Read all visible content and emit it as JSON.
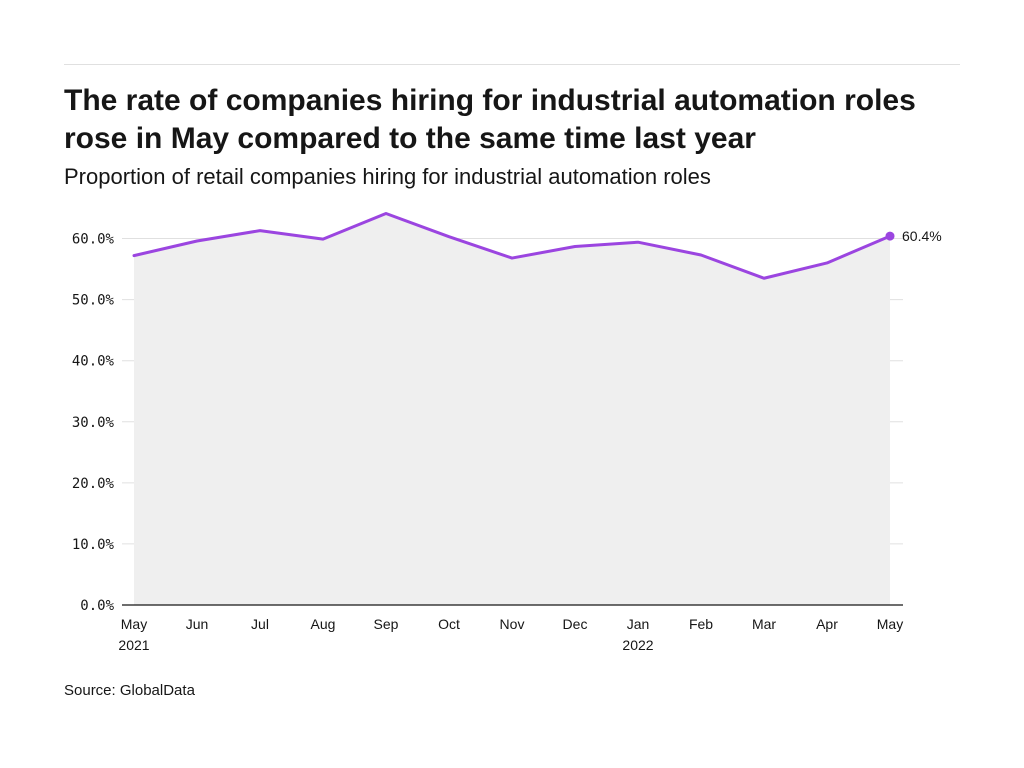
{
  "header": {
    "title": "The rate of companies hiring for industrial automation roles rose in May compared to the same time last year",
    "subtitle": "Proportion of retail companies hiring for industrial automation roles"
  },
  "footer": {
    "source": "Source: GlobalData"
  },
  "colors": {
    "line": "#9b45e0",
    "area": "#efefef",
    "grid": "#e0e0e0",
    "axis": "#161616"
  },
  "chart_data": {
    "type": "area",
    "title": "The rate of companies hiring for industrial automation roles rose in May compared to the same time last year",
    "subtitle": "Proportion of retail companies hiring for industrial automation roles",
    "x": [
      "2021-05",
      "2021-06",
      "2021-07",
      "2021-08",
      "2021-09",
      "2021-10",
      "2021-11",
      "2021-12",
      "2022-01",
      "2022-02",
      "2022-03",
      "2022-04",
      "2022-05"
    ],
    "x_tick_labels": [
      "May",
      "Jun",
      "Jul",
      "Aug",
      "Sep",
      "Oct",
      "Nov",
      "Dec",
      "Jan",
      "Feb",
      "Mar",
      "Apr",
      "May"
    ],
    "x_year_labels": [
      "2021",
      "",
      "",
      "",
      "",
      "",
      "",
      "",
      "2022",
      "",
      "",
      "",
      ""
    ],
    "series": [
      {
        "values": [
          57.2,
          59.6,
          61.3,
          59.9,
          64.1,
          60.3,
          56.8,
          58.7,
          59.4,
          57.3,
          53.5,
          56.0,
          60.4
        ]
      }
    ],
    "y_tick_labels": [
      "0.0%",
      "10.0%",
      "20.0%",
      "30.0%",
      "40.0%",
      "50.0%",
      "60.0%"
    ],
    "y_ticks": [
      0,
      10,
      20,
      30,
      40,
      50,
      60
    ],
    "ylim": [
      0,
      65
    ],
    "xlabel": "",
    "ylabel": "",
    "end_label": "60.4%",
    "grid": true,
    "legend": "none"
  }
}
